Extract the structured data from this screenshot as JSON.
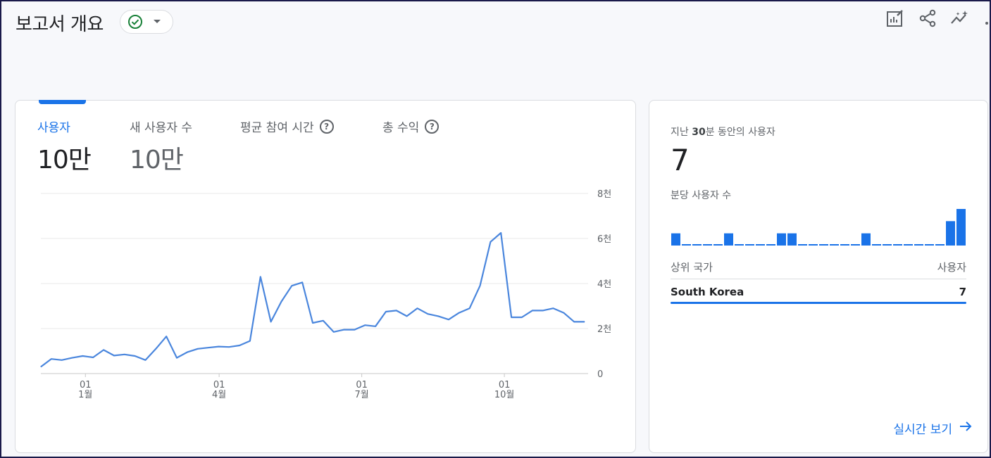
{
  "header": {
    "title": "보고서 개요",
    "status_icon": "check-circle-icon",
    "dropdown_icon": "caret-down-icon",
    "toolbar_icons": [
      "edit-report-icon",
      "share-icon",
      "insights-icon",
      "more-icon"
    ]
  },
  "metrics": [
    {
      "label": "사용자",
      "value": "10만",
      "help": ""
    },
    {
      "label": "새 사용자 수",
      "value": "10만",
      "help": ""
    },
    {
      "label": "평균 참여 시간",
      "value": "",
      "help": "?"
    },
    {
      "label": "총 수익",
      "value": "",
      "help": "?"
    }
  ],
  "chart_data": {
    "type": "line",
    "series": [
      {
        "values": [
          300,
          650,
          600,
          700,
          780,
          720,
          1050,
          800,
          850,
          780,
          600,
          1100,
          1650,
          700,
          950,
          1100,
          1150,
          1200,
          1180,
          1250,
          1450,
          4300,
          2300,
          3200,
          3900,
          4050,
          2250,
          2350,
          1850,
          1950,
          1950,
          2150,
          2100,
          2750,
          2800,
          2550,
          2900,
          2650,
          2550,
          2400,
          2700,
          2900,
          3900,
          5850,
          6250,
          2500,
          2500,
          2800,
          2800,
          2900,
          2700,
          2300,
          2300
        ]
      }
    ],
    "x_ticks": [
      {
        "day": "01",
        "month": "1월"
      },
      {
        "day": "01",
        "month": "4월"
      },
      {
        "day": "01",
        "month": "7월"
      },
      {
        "day": "01",
        "month": "10월"
      }
    ],
    "y_ticks": [
      "0",
      "2천",
      "4천",
      "6천",
      "8천"
    ],
    "ylim": [
      0,
      8000
    ],
    "grid": true,
    "color": "#4a86dd"
  },
  "realtime": {
    "title_prefix": "지난",
    "title_number": "30",
    "title_suffix": "분 동안의 사용자",
    "value": "7",
    "per_minute_label": "분당 사용자 수",
    "per_minute_values": [
      1,
      0,
      0,
      0,
      0,
      1,
      0,
      0,
      0,
      0,
      1,
      1,
      0,
      0,
      0,
      0,
      0,
      0,
      1,
      0,
      0,
      0,
      0,
      0,
      0,
      0,
      2,
      3
    ],
    "table_header_left": "상위 국가",
    "table_header_right": "사용자",
    "rows": [
      {
        "country": "South Korea",
        "users": "7"
      }
    ],
    "link_label": "실시간 보기",
    "bar_color": "#1a73e8"
  }
}
